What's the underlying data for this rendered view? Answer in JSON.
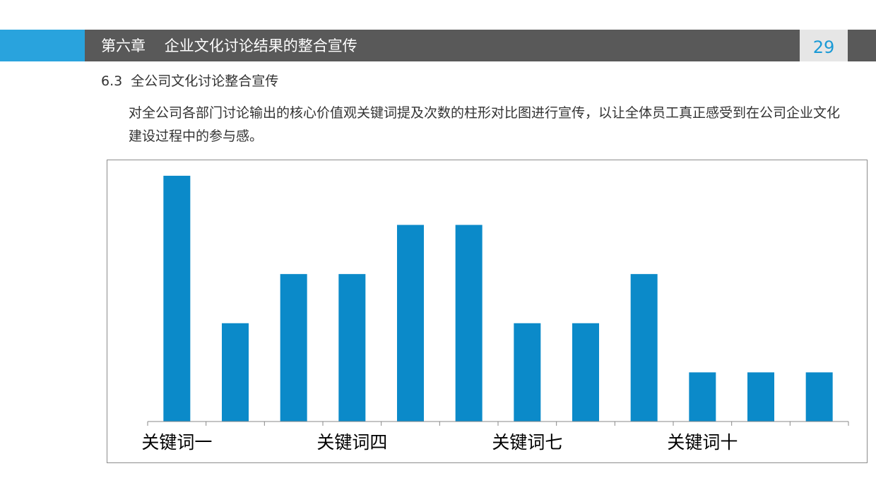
{
  "header": {
    "chapter_title": "第六章    企业文化讨论结果的整合宣传",
    "page_number": "29",
    "colors": {
      "accent": "#29a3dd",
      "bar": "#595959"
    }
  },
  "section": {
    "heading": "6.3  全公司文化讨论整合宣传",
    "paragraph": "对全公司各部门讨论输出的核心价值观关键词提及次数的柱形对比图进行宣传，以让全体员工真正感受到在公司企业文化建设过程中的参与感。"
  },
  "chart_data": {
    "type": "bar",
    "values": [
      5,
      2,
      3,
      3,
      4,
      4,
      2,
      2,
      3,
      1,
      1,
      1
    ],
    "tick_labels": [
      "关键词一",
      "关键词四",
      "关键词七",
      "关键词十"
    ],
    "tick_label_interval": 3,
    "ylim": [
      0,
      5.2
    ],
    "grid": false,
    "y_axis_visible": false,
    "bar_color": "#0b8ac9"
  }
}
